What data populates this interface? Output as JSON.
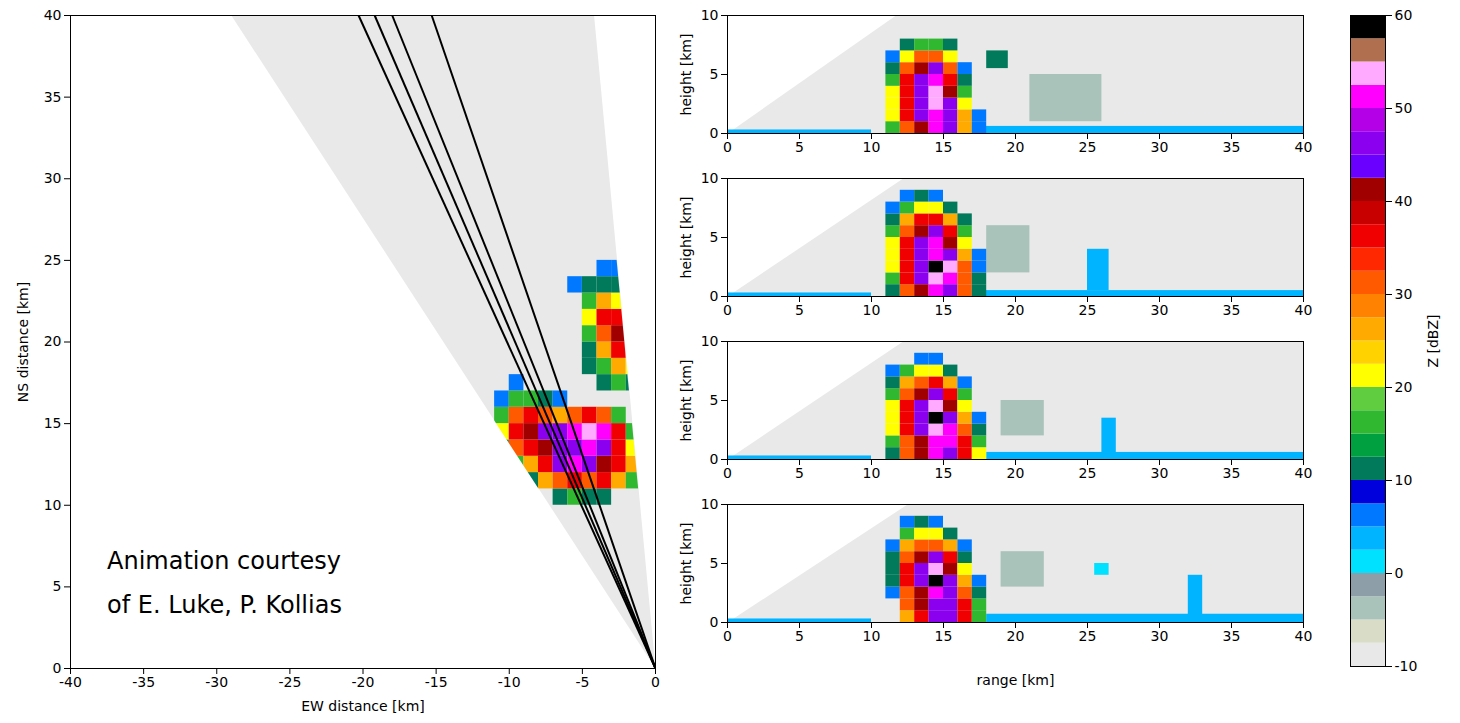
{
  "chart_data": [
    {
      "type": "heatmap",
      "x_label": "EW distance [km]",
      "y_label": "NS distance [km]",
      "xlim": [
        -40,
        0
      ],
      "xticks": [
        -40,
        -35,
        -30,
        -25,
        -20,
        -15,
        -10,
        -5,
        0
      ],
      "ylim": [
        0,
        40
      ],
      "yticks": [
        0,
        5,
        10,
        15,
        20,
        25,
        30,
        35,
        40
      ],
      "scan_sector": [
        [
          0,
          0
        ],
        [
          -29,
          40
        ],
        [
          -4.2,
          40
        ]
      ],
      "rhi_line_origin": [
        0,
        0
      ],
      "rhi_line_ends": [
        [
          -20.3,
          40
        ],
        [
          -19.2,
          40
        ],
        [
          -18.0,
          40
        ],
        [
          -15.3,
          40
        ]
      ],
      "cells": {
        "x0": -12,
        "dx": 1,
        "y0": 10,
        "dy": 1,
        "z": [
          [
            null,
            null,
            null,
            null,
            null,
            10,
            15,
            10,
            10,
            null,
            null,
            null
          ],
          [
            null,
            null,
            null,
            10,
            25,
            30,
            35,
            30,
            35,
            25,
            15,
            null
          ],
          [
            null,
            null,
            15,
            25,
            35,
            45,
            50,
            45,
            40,
            35,
            25,
            null
          ],
          [
            null,
            10,
            30,
            35,
            40,
            45,
            45,
            50,
            45,
            35,
            20,
            null
          ],
          [
            null,
            20,
            35,
            40,
            45,
            45,
            50,
            53,
            50,
            35,
            15,
            null
          ],
          [
            null,
            15,
            30,
            35,
            30,
            25,
            30,
            35,
            30,
            15,
            null,
            null
          ],
          [
            null,
            5,
            15,
            15,
            10,
            5,
            null,
            null,
            null,
            null,
            null,
            null
          ],
          [
            null,
            null,
            5,
            null,
            null,
            null,
            null,
            null,
            10,
            15,
            10,
            null
          ],
          [
            null,
            null,
            null,
            null,
            null,
            null,
            null,
            10,
            15,
            25,
            20,
            null
          ],
          [
            null,
            null,
            null,
            null,
            null,
            null,
            null,
            10,
            25,
            35,
            30,
            null
          ],
          [
            null,
            null,
            null,
            null,
            null,
            null,
            null,
            15,
            30,
            40,
            35,
            null
          ],
          [
            null,
            null,
            null,
            null,
            null,
            null,
            null,
            20,
            35,
            35,
            25,
            null
          ],
          [
            null,
            null,
            null,
            null,
            null,
            null,
            null,
            15,
            25,
            20,
            null,
            null
          ],
          [
            null,
            null,
            null,
            null,
            null,
            null,
            5,
            10,
            10,
            10,
            null,
            null
          ],
          [
            null,
            null,
            null,
            null,
            null,
            null,
            null,
            null,
            5,
            5,
            null,
            null
          ]
        ]
      },
      "annotation": {
        "lines": [
          "Animation courtesy",
          "of E. Luke, P. Kollias"
        ],
        "x": -37.5,
        "y": 5.6
      }
    },
    {
      "type": "heatmap",
      "y_label": "height [km]",
      "xlim": [
        0,
        40
      ],
      "xticks": [
        0,
        5,
        10,
        15,
        20,
        25,
        30,
        35,
        40
      ],
      "ylim": [
        0,
        10
      ],
      "yticks": [
        0,
        5,
        10
      ],
      "scan_limit": {
        "range": 11.7,
        "height": 10
      },
      "cells": {
        "x0": 10,
        "dx": 1,
        "y0": 0,
        "dy": 1,
        "z": [
          [
            null,
            15,
            30,
            40,
            50,
            45,
            25,
            5,
            null
          ],
          [
            null,
            20,
            35,
            45,
            50,
            45,
            25,
            5,
            null
          ],
          [
            null,
            20,
            35,
            45,
            53,
            45,
            20,
            null,
            null
          ],
          [
            null,
            20,
            35,
            45,
            53,
            40,
            15,
            null,
            null
          ],
          [
            null,
            15,
            35,
            45,
            50,
            35,
            10,
            null,
            null
          ],
          [
            null,
            10,
            30,
            40,
            45,
            30,
            5,
            null,
            null
          ],
          [
            null,
            5,
            20,
            30,
            30,
            20,
            null,
            null,
            null
          ],
          [
            null,
            null,
            10,
            15,
            15,
            10,
            null,
            null,
            null
          ]
        ]
      },
      "echoes": [
        {
          "range": [
            0,
            10
          ],
          "height": [
            0,
            0.3
          ],
          "z": 3
        },
        {
          "range": [
            17,
            40
          ],
          "height": [
            0,
            0.6
          ],
          "z": 3
        },
        {
          "range": [
            18,
            19.5
          ],
          "height": [
            5.5,
            7
          ],
          "z": 10
        },
        {
          "range": [
            21,
            26
          ],
          "height": [
            1,
            5
          ],
          "z": -5
        }
      ]
    },
    {
      "type": "heatmap",
      "y_label": "height [km]",
      "xlim": [
        0,
        40
      ],
      "xticks": [
        0,
        5,
        10,
        15,
        20,
        25,
        30,
        35,
        40
      ],
      "ylim": [
        0,
        10
      ],
      "yticks": [
        0,
        5,
        10
      ],
      "scan_limit": {
        "range": 12.2,
        "height": 10
      },
      "cells": {
        "x0": 10,
        "dx": 1,
        "y0": 0,
        "dy": 1,
        "z": [
          [
            null,
            10,
            30,
            40,
            50,
            45,
            30,
            10,
            null
          ],
          [
            null,
            15,
            35,
            45,
            53,
            50,
            30,
            10,
            null
          ],
          [
            null,
            20,
            35,
            45,
            58,
            53,
            30,
            5,
            null
          ],
          [
            null,
            20,
            35,
            45,
            50,
            45,
            25,
            5,
            null
          ],
          [
            null,
            20,
            35,
            45,
            50,
            40,
            20,
            null,
            null
          ],
          [
            null,
            15,
            30,
            40,
            45,
            35,
            15,
            null,
            null
          ],
          [
            null,
            10,
            25,
            35,
            35,
            25,
            10,
            null,
            null
          ],
          [
            null,
            5,
            15,
            20,
            20,
            10,
            null,
            null,
            null
          ],
          [
            null,
            null,
            5,
            10,
            5,
            null,
            null,
            null,
            null
          ]
        ]
      },
      "echoes": [
        {
          "range": [
            0,
            10
          ],
          "height": [
            0,
            0.3
          ],
          "z": 3
        },
        {
          "range": [
            17,
            40
          ],
          "height": [
            0,
            0.5
          ],
          "z": 3
        },
        {
          "range": [
            18,
            21
          ],
          "height": [
            2,
            6
          ],
          "z": -5
        },
        {
          "range": [
            25,
            26.5
          ],
          "height": [
            0.5,
            4
          ],
          "z": 3
        }
      ]
    },
    {
      "type": "heatmap",
      "y_label": "height [km]",
      "xlim": [
        0,
        40
      ],
      "xticks": [
        0,
        5,
        10,
        15,
        20,
        25,
        30,
        35,
        40
      ],
      "ylim": [
        0,
        10
      ],
      "yticks": [
        0,
        5,
        10
      ],
      "scan_limit": {
        "range": 12.2,
        "height": 10
      },
      "cells": {
        "x0": 10,
        "dx": 1,
        "y0": 0,
        "dy": 1,
        "z": [
          [
            null,
            10,
            30,
            40,
            50,
            45,
            35,
            20,
            null
          ],
          [
            null,
            15,
            30,
            40,
            50,
            50,
            35,
            15,
            null
          ],
          [
            null,
            20,
            35,
            45,
            53,
            50,
            30,
            10,
            null
          ],
          [
            null,
            20,
            35,
            45,
            58,
            45,
            25,
            5,
            null
          ],
          [
            null,
            20,
            35,
            45,
            53,
            40,
            20,
            null,
            null
          ],
          [
            null,
            15,
            30,
            40,
            45,
            35,
            15,
            null,
            null
          ],
          [
            null,
            10,
            25,
            30,
            35,
            25,
            5,
            null,
            null
          ],
          [
            null,
            5,
            15,
            20,
            20,
            10,
            null,
            null,
            null
          ],
          [
            null,
            null,
            null,
            5,
            5,
            null,
            null,
            null,
            null
          ]
        ]
      },
      "echoes": [
        {
          "range": [
            0,
            10
          ],
          "height": [
            0,
            0.3
          ],
          "z": 3
        },
        {
          "range": [
            18,
            40
          ],
          "height": [
            0,
            0.6
          ],
          "z": 3
        },
        {
          "range": [
            19,
            22
          ],
          "height": [
            2,
            5
          ],
          "z": -5
        },
        {
          "range": [
            26,
            27
          ],
          "height": [
            0.5,
            3.5
          ],
          "z": 3
        }
      ]
    },
    {
      "type": "heatmap",
      "x_label": "range [km]",
      "y_label": "height [km]",
      "xlim": [
        0,
        40
      ],
      "xticks": [
        0,
        5,
        10,
        15,
        20,
        25,
        30,
        35,
        40
      ],
      "ylim": [
        0,
        10
      ],
      "yticks": [
        0,
        5,
        10
      ],
      "scan_limit": {
        "range": 12.5,
        "height": 10
      },
      "cells": {
        "x0": 10,
        "dx": 1,
        "y0": 0,
        "dy": 1,
        "z": [
          [
            null,
            null,
            25,
            35,
            45,
            45,
            35,
            15,
            null
          ],
          [
            null,
            null,
            30,
            40,
            45,
            45,
            35,
            15,
            null
          ],
          [
            null,
            5,
            30,
            40,
            50,
            45,
            30,
            10,
            null
          ],
          [
            null,
            10,
            35,
            45,
            58,
            45,
            25,
            5,
            null
          ],
          [
            null,
            10,
            35,
            45,
            53,
            40,
            20,
            null,
            null
          ],
          [
            null,
            10,
            30,
            40,
            45,
            35,
            10,
            null,
            null
          ],
          [
            null,
            5,
            25,
            30,
            30,
            25,
            5,
            null,
            null
          ],
          [
            null,
            null,
            15,
            20,
            20,
            10,
            null,
            null,
            null
          ],
          [
            null,
            null,
            5,
            10,
            5,
            null,
            null,
            null,
            null
          ]
        ]
      },
      "echoes": [
        {
          "range": [
            0,
            10
          ],
          "height": [
            0,
            0.3
          ],
          "z": 3
        },
        {
          "range": [
            18,
            40
          ],
          "height": [
            0,
            0.7
          ],
          "z": 3
        },
        {
          "range": [
            19,
            22
          ],
          "height": [
            3,
            6
          ],
          "z": -5
        },
        {
          "range": [
            25.5,
            26.5
          ],
          "height": [
            4,
            5
          ],
          "z": 0
        },
        {
          "range": [
            32,
            33
          ],
          "height": [
            0,
            4
          ],
          "z": 3
        }
      ]
    },
    {
      "type": "colorbar",
      "label": "Z [dBZ]",
      "range": [
        -10,
        60
      ],
      "ticks": [
        -10,
        0,
        10,
        20,
        30,
        40,
        50,
        60
      ],
      "bounds": [
        -10,
        -7.5,
        -5,
        -2.5,
        0,
        2.5,
        5,
        7.5,
        10,
        12.5,
        15,
        17.5,
        20,
        22.5,
        25,
        27.5,
        30,
        32.5,
        35,
        37.5,
        40,
        42.5,
        45,
        47.5,
        50,
        52.5,
        55,
        57.5,
        60
      ],
      "colors": [
        "#e8e8e8",
        "#d9dcc6",
        "#a9c2ba",
        "#8e9ea9",
        "#00e0ff",
        "#00b4ff",
        "#0078ff",
        "#0000dc",
        "#007a5a",
        "#00a040",
        "#30b830",
        "#60cc40",
        "#ffff00",
        "#ffd200",
        "#ffaa00",
        "#ff8200",
        "#ff5a00",
        "#ff2800",
        "#f00000",
        "#c80000",
        "#a00000",
        "#6a00ff",
        "#8c00f0",
        "#b400e6",
        "#ff00ff",
        "#ffaaff",
        "#b07050",
        "#000000"
      ]
    }
  ]
}
